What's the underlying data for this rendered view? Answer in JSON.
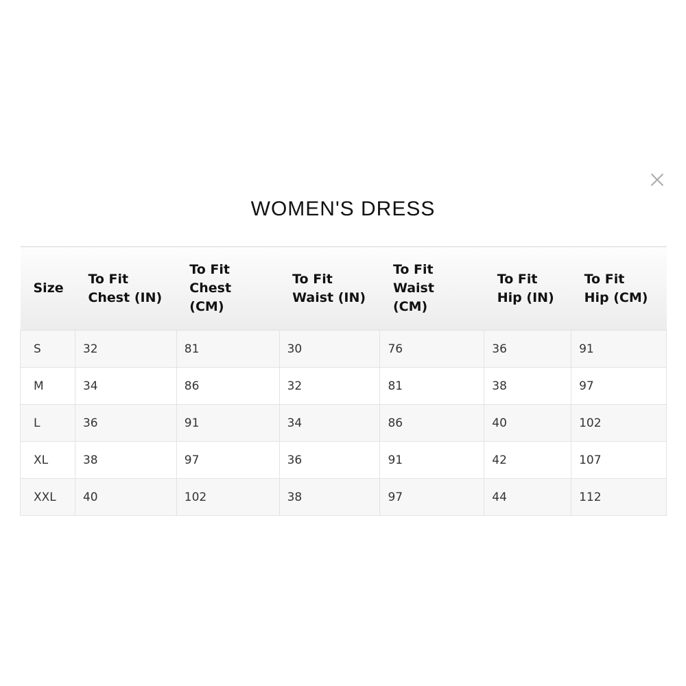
{
  "title": "WOMEN'S DRESS",
  "close_icon": "close-icon",
  "headers": [
    "Size",
    "To Fit\nChest (IN)",
    "To Fit\nChest\n(CM)",
    "To Fit\nWaist (IN)",
    "To Fit\nWaist\n(CM)",
    "To Fit\nHip (IN)",
    "To Fit\nHip (CM)"
  ],
  "rows": [
    [
      "S",
      "32",
      "81",
      "30",
      "76",
      "36",
      "91"
    ],
    [
      "M",
      "34",
      "86",
      "32",
      "81",
      "38",
      "97"
    ],
    [
      "L",
      "36",
      "91",
      "34",
      "86",
      "40",
      "102"
    ],
    [
      "XL",
      "38",
      "97",
      "36",
      "91",
      "42",
      "107"
    ],
    [
      "XXL",
      "40",
      "102",
      "38",
      "97",
      "44",
      "112"
    ]
  ]
}
